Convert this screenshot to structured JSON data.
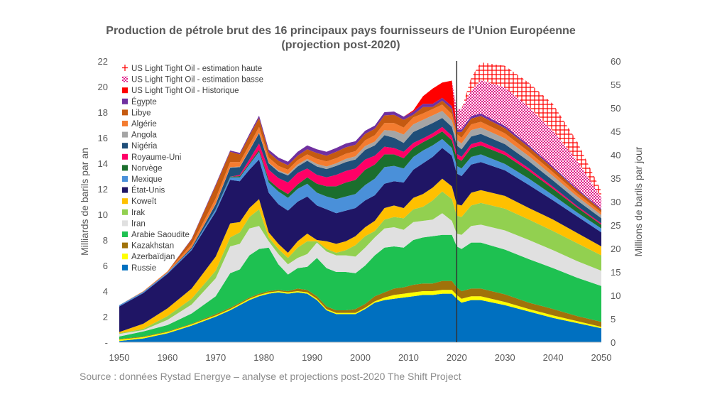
{
  "title_line1": "Production de pétrole brut des 16 principaux pays fournisseurs de l’Union Européenne",
  "title_line2": "(projection post-2020)",
  "source": "Source : données Rystad Energye – analyse et projections post-2020 The Shift Project",
  "chart_data": {
    "type": "area",
    "stacked": true,
    "title": "Production de pétrole brut des 16 principaux pays fournisseurs de l’Union Européenne (projection post-2020)",
    "xlabel": "",
    "ylabel": "Milliards de barils par an",
    "y2label": "Millions de barils par jour",
    "xlim": [
      1950,
      2050
    ],
    "ylim": [
      0,
      22
    ],
    "y2lim": [
      0,
      60
    ],
    "x_ticks": [
      1950,
      1960,
      1970,
      1980,
      1990,
      2000,
      2010,
      2020,
      2030,
      2040,
      2050
    ],
    "y_ticks": [
      0,
      2,
      4,
      6,
      8,
      10,
      12,
      14,
      16,
      18,
      20,
      22
    ],
    "y_tick_labels": [
      "-",
      "2",
      "4",
      "6",
      "8",
      "10",
      "12",
      "14",
      "16",
      "18",
      "20",
      "22"
    ],
    "y2_ticks": [
      0,
      5,
      10,
      15,
      20,
      25,
      30,
      35,
      40,
      45,
      50,
      55,
      60
    ],
    "projection_start": 2020,
    "legend_position": "top-left",
    "x": [
      1950,
      1955,
      1960,
      1965,
      1970,
      1973,
      1975,
      1977,
      1979,
      1981,
      1983,
      1985,
      1987,
      1989,
      1991,
      1993,
      1995,
      1997,
      1999,
      2001,
      2003,
      2005,
      2007,
      2009,
      2011,
      2013,
      2015,
      2017,
      2019,
      2020,
      2021,
      2023,
      2025,
      2030,
      2035,
      2040,
      2045,
      2050
    ],
    "series": [
      {
        "name": "Russie",
        "color": "#0070C0",
        "values": [
          0.1,
          0.3,
          0.7,
          1.3,
          2.0,
          2.5,
          2.9,
          3.3,
          3.6,
          3.8,
          3.9,
          3.8,
          3.9,
          3.8,
          3.3,
          2.5,
          2.2,
          2.2,
          2.2,
          2.6,
          3.1,
          3.3,
          3.4,
          3.5,
          3.6,
          3.7,
          3.7,
          3.8,
          3.8,
          3.4,
          3.1,
          3.3,
          3.3,
          2.9,
          2.4,
          1.9,
          1.5,
          1.1
        ]
      },
      {
        "name": "Azerbaïdjan",
        "color": "#FFFF00",
        "values": [
          0.1,
          0.1,
          0.1,
          0.1,
          0.1,
          0.1,
          0.1,
          0.1,
          0.1,
          0.1,
          0.1,
          0.1,
          0.1,
          0.1,
          0.1,
          0.1,
          0.1,
          0.1,
          0.1,
          0.1,
          0.1,
          0.2,
          0.3,
          0.3,
          0.3,
          0.3,
          0.3,
          0.3,
          0.3,
          0.3,
          0.3,
          0.3,
          0.3,
          0.25,
          0.2,
          0.2,
          0.15,
          0.1
        ]
      },
      {
        "name": "Kazakhstan",
        "color": "#A0720A",
        "values": [
          0.05,
          0.05,
          0.05,
          0.05,
          0.1,
          0.1,
          0.1,
          0.1,
          0.1,
          0.1,
          0.1,
          0.1,
          0.2,
          0.2,
          0.2,
          0.2,
          0.2,
          0.2,
          0.3,
          0.3,
          0.4,
          0.4,
          0.5,
          0.5,
          0.6,
          0.6,
          0.6,
          0.7,
          0.7,
          0.6,
          0.6,
          0.6,
          0.6,
          0.6,
          0.5,
          0.5,
          0.4,
          0.4
        ]
      },
      {
        "name": "Arabie Saoudite",
        "color": "#1EC151",
        "values": [
          0.2,
          0.4,
          0.5,
          0.8,
          1.4,
          2.7,
          2.6,
          3.3,
          3.5,
          3.4,
          2.0,
          1.3,
          1.6,
          1.8,
          3.0,
          3.0,
          3.0,
          3.0,
          2.8,
          3.0,
          3.2,
          3.5,
          3.3,
          3.1,
          3.5,
          3.6,
          3.7,
          3.6,
          3.6,
          3.2,
          3.3,
          3.6,
          3.6,
          3.5,
          3.4,
          3.2,
          3.0,
          2.8
        ]
      },
      {
        "name": "Iran",
        "color": "#E0E0E0",
        "values": [
          0.2,
          0.1,
          0.4,
          0.7,
          1.4,
          2.1,
          2.0,
          2.1,
          1.8,
          0.5,
          0.8,
          0.8,
          0.8,
          1.0,
          1.2,
          1.3,
          1.3,
          1.3,
          1.3,
          1.4,
          1.4,
          1.5,
          1.5,
          1.4,
          1.4,
          1.3,
          1.3,
          1.7,
          1.1,
          1.0,
          1.1,
          1.3,
          1.4,
          1.5,
          1.5,
          1.4,
          1.3,
          1.2
        ]
      },
      {
        "name": "Irak",
        "color": "#92D050",
        "values": [
          0.05,
          0.1,
          0.3,
          0.45,
          0.6,
          0.7,
          0.9,
          0.9,
          1.3,
          0.3,
          0.4,
          0.5,
          0.8,
          1.0,
          0.1,
          0.2,
          0.2,
          0.4,
          0.9,
          0.9,
          0.5,
          0.7,
          0.8,
          0.9,
          1.0,
          1.1,
          1.5,
          1.7,
          1.7,
          1.4,
          1.4,
          1.6,
          1.7,
          1.7,
          1.6,
          1.5,
          1.4,
          1.2
        ]
      },
      {
        "name": "Koweït",
        "color": "#FFC000",
        "values": [
          0.1,
          0.4,
          0.6,
          0.8,
          1.1,
          1.1,
          0.8,
          0.7,
          0.8,
          0.4,
          0.4,
          0.4,
          0.5,
          0.6,
          0.1,
          0.6,
          0.7,
          0.7,
          0.7,
          0.7,
          0.8,
          0.9,
          0.9,
          0.8,
          0.9,
          1.0,
          1.0,
          1.0,
          1.0,
          0.9,
          0.9,
          1.0,
          1.0,
          1.0,
          0.9,
          0.9,
          0.8,
          0.7
        ]
      },
      {
        "name": "État-Unis",
        "color": "#1F1565",
        "values": [
          2.0,
          2.4,
          2.7,
          3.0,
          3.5,
          3.4,
          3.2,
          3.0,
          3.1,
          3.1,
          3.1,
          3.3,
          3.1,
          2.9,
          2.7,
          2.5,
          2.4,
          2.4,
          2.2,
          2.1,
          2.0,
          1.9,
          1.9,
          2.0,
          2.2,
          2.4,
          2.4,
          2.4,
          2.4,
          2.4,
          2.3,
          2.2,
          2.2,
          2.0,
          1.8,
          1.5,
          1.3,
          1.1
        ]
      },
      {
        "name": "Mexique",
        "color": "#4A90D9",
        "values": [
          0.1,
          0.1,
          0.1,
          0.1,
          0.2,
          0.2,
          0.3,
          0.4,
          0.6,
          0.8,
          1.0,
          1.0,
          1.0,
          1.0,
          1.0,
          1.0,
          1.1,
          1.1,
          1.1,
          1.2,
          1.3,
          1.3,
          1.2,
          1.1,
          1.0,
          1.0,
          0.9,
          0.7,
          0.6,
          0.6,
          0.6,
          0.6,
          0.6,
          0.5,
          0.5,
          0.4,
          0.3,
          0.3
        ]
      },
      {
        "name": "Norvège",
        "color": "#1B6E2D",
        "values": [
          0,
          0,
          0,
          0,
          0,
          0.05,
          0.1,
          0.1,
          0.15,
          0.2,
          0.25,
          0.3,
          0.35,
          0.5,
          0.7,
          0.8,
          1.0,
          1.1,
          1.1,
          1.2,
          1.1,
          1.0,
          0.9,
          0.8,
          0.7,
          0.65,
          0.65,
          0.6,
          0.6,
          0.6,
          0.6,
          0.7,
          0.7,
          0.7,
          0.6,
          0.5,
          0.4,
          0.3
        ]
      },
      {
        "name": "Royaume-Uni",
        "color": "#FF0066",
        "values": [
          0,
          0,
          0,
          0,
          0,
          0,
          0.1,
          0.3,
          0.5,
          0.8,
          0.8,
          0.9,
          0.9,
          0.7,
          0.7,
          0.7,
          0.9,
          0.9,
          0.9,
          0.8,
          0.7,
          0.6,
          0.5,
          0.5,
          0.4,
          0.3,
          0.3,
          0.35,
          0.35,
          0.35,
          0.3,
          0.3,
          0.3,
          0.25,
          0.2,
          0.15,
          0.1,
          0.1
        ]
      },
      {
        "name": "Nigéria",
        "color": "#1F4E79",
        "values": [
          0,
          0,
          0,
          0.1,
          0.4,
          0.7,
          0.6,
          0.7,
          0.8,
          0.5,
          0.5,
          0.55,
          0.5,
          0.6,
          0.65,
          0.65,
          0.7,
          0.7,
          0.7,
          0.75,
          0.8,
          0.9,
          0.8,
          0.7,
          0.85,
          0.85,
          0.8,
          0.7,
          0.7,
          0.65,
          0.6,
          0.6,
          0.6,
          0.6,
          0.55,
          0.5,
          0.45,
          0.4
        ]
      },
      {
        "name": "Angola",
        "color": "#A5A5A5",
        "values": [
          0,
          0,
          0,
          0,
          0.05,
          0.05,
          0.05,
          0.05,
          0.05,
          0.05,
          0.1,
          0.1,
          0.15,
          0.15,
          0.2,
          0.2,
          0.2,
          0.25,
          0.25,
          0.3,
          0.3,
          0.4,
          0.55,
          0.65,
          0.6,
          0.6,
          0.6,
          0.55,
          0.5,
          0.45,
          0.45,
          0.5,
          0.5,
          0.45,
          0.4,
          0.35,
          0.3,
          0.25
        ]
      },
      {
        "name": "Algérie",
        "color": "#F47C30",
        "values": [
          0,
          0.05,
          0.1,
          0.25,
          0.4,
          0.4,
          0.35,
          0.4,
          0.45,
          0.4,
          0.35,
          0.35,
          0.35,
          0.35,
          0.4,
          0.4,
          0.4,
          0.4,
          0.4,
          0.45,
          0.5,
          0.55,
          0.6,
          0.55,
          0.55,
          0.5,
          0.5,
          0.5,
          0.5,
          0.45,
          0.45,
          0.45,
          0.45,
          0.4,
          0.35,
          0.3,
          0.25,
          0.2
        ]
      },
      {
        "name": "Libye",
        "color": "#C55A11",
        "values": [
          0,
          0,
          0,
          0.4,
          1.0,
          0.8,
          0.6,
          0.7,
          0.7,
          0.4,
          0.4,
          0.35,
          0.35,
          0.4,
          0.45,
          0.45,
          0.5,
          0.5,
          0.5,
          0.5,
          0.5,
          0.6,
          0.65,
          0.6,
          0.2,
          0.5,
          0.15,
          0.3,
          0.4,
          0.15,
          0.45,
          0.45,
          0.45,
          0.4,
          0.35,
          0.3,
          0.25,
          0.2
        ]
      },
      {
        "name": "Égypte",
        "color": "#7030A0",
        "values": [
          0,
          0,
          0,
          0.05,
          0.1,
          0.1,
          0.12,
          0.15,
          0.18,
          0.22,
          0.25,
          0.28,
          0.3,
          0.3,
          0.3,
          0.3,
          0.3,
          0.3,
          0.28,
          0.25,
          0.25,
          0.25,
          0.25,
          0.25,
          0.25,
          0.25,
          0.25,
          0.22,
          0.22,
          0.2,
          0.2,
          0.2,
          0.2,
          0.18,
          0.15,
          0.12,
          0.1,
          0.08
        ]
      },
      {
        "name": "US Light Tight Oil - Historique",
        "color": "#FF0000",
        "values": [
          0,
          0,
          0,
          0,
          0,
          0,
          0,
          0,
          0,
          0,
          0,
          0,
          0,
          0,
          0,
          0,
          0,
          0,
          0,
          0,
          0,
          0,
          0,
          0,
          0.1,
          0.6,
          1.2,
          1.2,
          2.0,
          0,
          0,
          0,
          0,
          0,
          0,
          0,
          0,
          0
        ]
      },
      {
        "name": "US Light Tight Oil - estimation basse",
        "color": "#E0218A",
        "pattern": "dots",
        "values": [
          0,
          0,
          0,
          0,
          0,
          0,
          0,
          0,
          0,
          0,
          0,
          0,
          0,
          0,
          0,
          0,
          0,
          0,
          0,
          0,
          0,
          0,
          0,
          0,
          0,
          0,
          0,
          0,
          0,
          1.6,
          1.6,
          2.0,
          2.6,
          3.0,
          3.0,
          2.8,
          2.2,
          0.9
        ]
      },
      {
        "name": "US Light Tight Oil - estimation haute",
        "color": "#FF0000",
        "pattern": "grid",
        "values": [
          0,
          0,
          0,
          0,
          0,
          0,
          0,
          0,
          0,
          0,
          0,
          0,
          0,
          0,
          0,
          0,
          0,
          0,
          0,
          0,
          0,
          0,
          0,
          0,
          0,
          0,
          0,
          0,
          0,
          0,
          0,
          1.0,
          1.4,
          1.7,
          1.9,
          2.1,
          1.5,
          0.5
        ]
      }
    ]
  }
}
